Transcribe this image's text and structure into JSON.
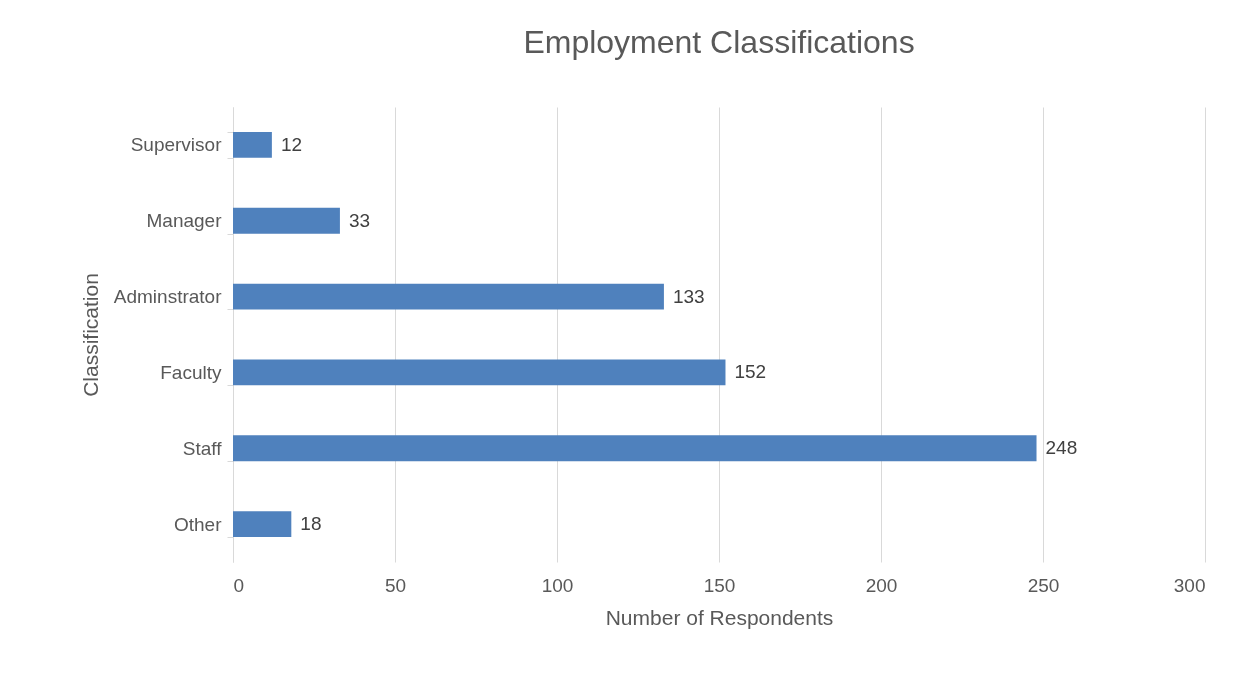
{
  "chart_data": {
    "type": "bar",
    "orientation": "horizontal",
    "title": "Employment Classifications",
    "xlabel": "Number of Respondents",
    "ylabel": "Classification",
    "categories": [
      "Supervisor",
      "Manager",
      "Adminstrator",
      "Faculty",
      "Staff",
      "Other"
    ],
    "values": [
      12,
      33,
      133,
      152,
      248,
      18
    ],
    "color": "#4f81bd",
    "xlim": [
      0,
      300
    ],
    "xticks": [
      0,
      50,
      100,
      150,
      200,
      250,
      300
    ],
    "grid": "x",
    "data_labels": true
  }
}
